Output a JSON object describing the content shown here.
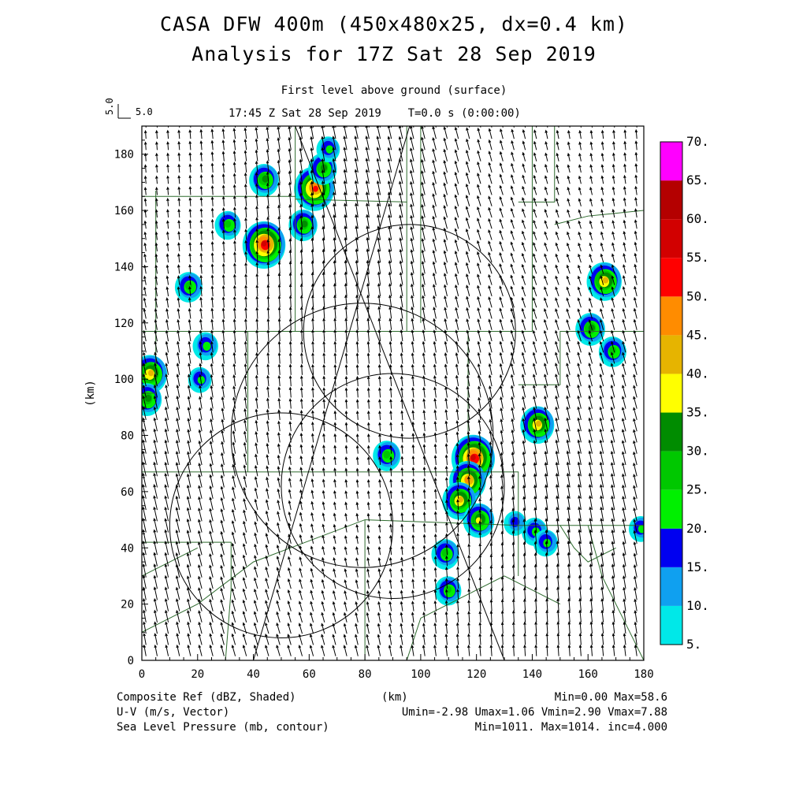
{
  "title": {
    "line1": "CASA DFW 400m (450x480x25, dx=0.4 km)",
    "line2": "Analysis for 17Z Sat 28 Sep 2019"
  },
  "subtitle": {
    "level": "First level above ground (surface)",
    "time": "17:45 Z Sat 28 Sep 2019    T=0.0 s (0:00:00)"
  },
  "vector_scale": {
    "label": "5.0",
    "vertical_label": "5.0"
  },
  "axes": {
    "x_label": "(km)",
    "y_label": "(km)",
    "x_ticks": [
      "0",
      "20",
      "40",
      "60",
      "80",
      "100",
      "120",
      "140",
      "160",
      "180"
    ],
    "y_ticks": [
      "0",
      "20",
      "40",
      "60",
      "80",
      "100",
      "120",
      "140",
      "160",
      "180"
    ],
    "xlim": [
      0,
      180
    ],
    "ylim": [
      0,
      190
    ]
  },
  "colorbar": {
    "labels": [
      "5.",
      "10.",
      "15.",
      "20.",
      "25.",
      "30.",
      "35.",
      "40.",
      "45.",
      "50.",
      "55.",
      "60.",
      "65.",
      "70."
    ],
    "colors": [
      "#00e8e8",
      "#0fa0f0",
      "#0000f0",
      "#00f000",
      "#00c800",
      "#008c00",
      "#ffff00",
      "#e6b400",
      "#ff8c00",
      "#ff0000",
      "#d20000",
      "#b40000",
      "#ff00ff"
    ]
  },
  "footer": {
    "left1": "Composite Ref (dBZ, Shaded)",
    "left2": "U-V (m/s, Vector)",
    "left3": "Sea Level Pressure (mb, contour)",
    "center": "(km)",
    "right1": "Min=0.00 Max=58.6",
    "right2": "Umin=-2.98 Umax=1.06 Vmin=2.90 Vmax=7.88",
    "right3": "Min=1011. Max=1014. inc=4.000"
  },
  "map_data": {
    "domain_km": [
      180,
      190
    ],
    "storms_km": [
      {
        "x": 3,
        "y": 102,
        "peak": 42
      },
      {
        "x": 2,
        "y": 93,
        "peak": 32
      },
      {
        "x": 44,
        "y": 171,
        "peak": 32
      },
      {
        "x": 62,
        "y": 168,
        "peak": 52
      },
      {
        "x": 65,
        "y": 175,
        "peak": 30
      },
      {
        "x": 67,
        "y": 182,
        "peak": 20
      },
      {
        "x": 58,
        "y": 155,
        "peak": 30
      },
      {
        "x": 31,
        "y": 155,
        "peak": 25
      },
      {
        "x": 44,
        "y": 148,
        "peak": 57
      },
      {
        "x": 17,
        "y": 133,
        "peak": 28
      },
      {
        "x": 23,
        "y": 112,
        "peak": 24
      },
      {
        "x": 21,
        "y": 100,
        "peak": 20
      },
      {
        "x": 88,
        "y": 73,
        "peak": 28
      },
      {
        "x": 119,
        "y": 72,
        "peak": 58
      },
      {
        "x": 117,
        "y": 64,
        "peak": 45
      },
      {
        "x": 114,
        "y": 57,
        "peak": 40
      },
      {
        "x": 121,
        "y": 50,
        "peak": 35
      },
      {
        "x": 109,
        "y": 38,
        "peak": 28
      },
      {
        "x": 110,
        "y": 25,
        "peak": 26
      },
      {
        "x": 142,
        "y": 84,
        "peak": 40
      },
      {
        "x": 141,
        "y": 46,
        "peak": 24
      },
      {
        "x": 145,
        "y": 42,
        "peak": 22
      },
      {
        "x": 134,
        "y": 49,
        "peak": 18
      },
      {
        "x": 166,
        "y": 135,
        "peak": 42
      },
      {
        "x": 161,
        "y": 118,
        "peak": 32
      },
      {
        "x": 169,
        "y": 110,
        "peak": 28
      },
      {
        "x": 179,
        "y": 47,
        "peak": 20
      }
    ],
    "radar_rings_km": [
      {
        "x": 96,
        "y": 117,
        "r": 38
      },
      {
        "x": 79,
        "y": 80,
        "r": 47
      },
      {
        "x": 90,
        "y": 62,
        "r": 40
      },
      {
        "x": 50,
        "y": 48,
        "r": 40
      }
    ]
  }
}
